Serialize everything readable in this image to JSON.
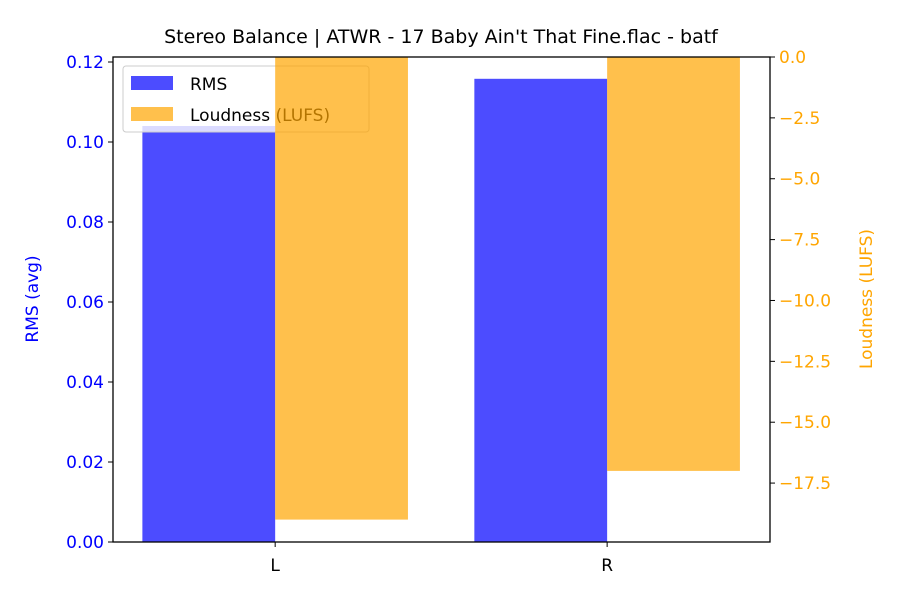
{
  "chart_data": {
    "type": "bar",
    "title": "Stereo Balance | ATWR - 17 Baby Ain't That Fine.flac - batf",
    "categories": [
      "L",
      "R"
    ],
    "series": [
      {
        "name": "RMS",
        "axis": "left",
        "values": [
          0.104,
          0.1158
        ],
        "color": "#0000ff",
        "alpha": 0.7
      },
      {
        "name": "Loudness (LUFS)",
        "axis": "right",
        "values": [
          -19.0,
          -17.0
        ],
        "color": "#ffa500",
        "alpha": 0.7
      }
    ],
    "ylabel": "RMS (avg)",
    "ylabel_right": "Loudness (LUFS)",
    "ylim": [
      0,
      0.12125
    ],
    "ylim_right": [
      -19.92,
      0
    ],
    "yticks": [
      "0.00",
      "0.02",
      "0.04",
      "0.06",
      "0.08",
      "0.10",
      "0.12"
    ],
    "yticks_right": [
      "0.0",
      "−2.5",
      "−5.0",
      "−7.5",
      "−10.0",
      "−12.5",
      "−15.0",
      "−17.5"
    ],
    "left_axis_color": "#0000ff",
    "right_axis_color": "#ffa500",
    "grid": false,
    "legend": "upper-left"
  }
}
